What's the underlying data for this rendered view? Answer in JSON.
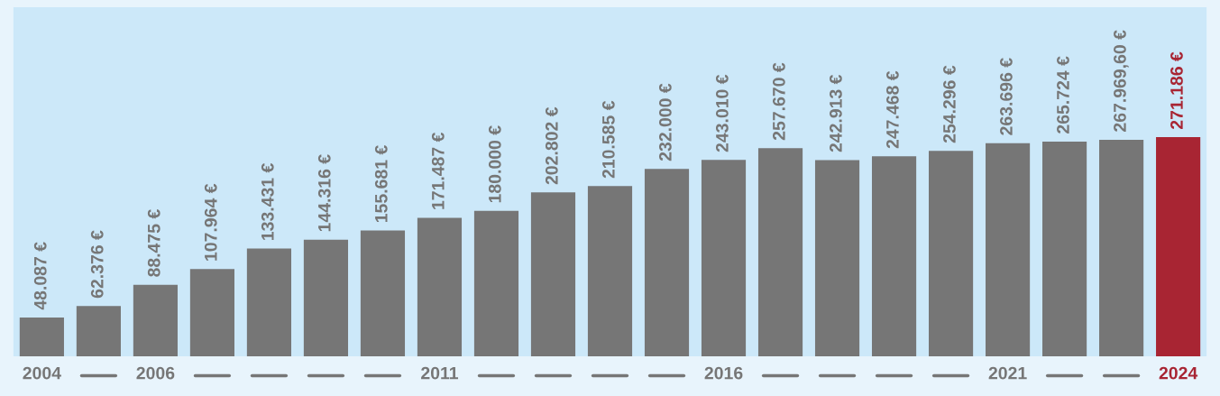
{
  "chart_data": {
    "type": "bar",
    "categories": [
      "2004",
      null,
      "2006",
      null,
      null,
      null,
      null,
      "2011",
      null,
      null,
      null,
      null,
      "2016",
      null,
      null,
      null,
      null,
      "2021",
      null,
      null,
      "2024"
    ],
    "values": [
      48087,
      62376,
      88475,
      107964,
      133431,
      144316,
      155681,
      171487,
      180000,
      202802,
      210585,
      232000,
      243010,
      257670,
      242913,
      247468,
      254296,
      263696,
      265724,
      267969.6,
      271186
    ],
    "value_labels": [
      "48.087 €",
      "62.376 €",
      "88.475 €",
      "107.964 €",
      "133.431 €",
      "144.316 €",
      "155.681 €",
      "171.487 €",
      "180.000 €",
      "202.802 €",
      "210.585 €",
      "232.000 €",
      "243.010 €",
      "257.670 €",
      "242.913 €",
      "247.468 €",
      "254.296 €",
      "263.696 €",
      "265.724 €",
      "267.969,60 €",
      "271.186 €"
    ],
    "colors": [
      "#767676",
      "#767676",
      "#767676",
      "#767676",
      "#767676",
      "#767676",
      "#767676",
      "#767676",
      "#767676",
      "#767676",
      "#767676",
      "#767676",
      "#767676",
      "#767676",
      "#767676",
      "#767676",
      "#767676",
      "#767676",
      "#767676",
      "#767676",
      "#a82533"
    ],
    "ylim": [
      0,
      432000
    ],
    "grid": false,
    "legend": false
  }
}
